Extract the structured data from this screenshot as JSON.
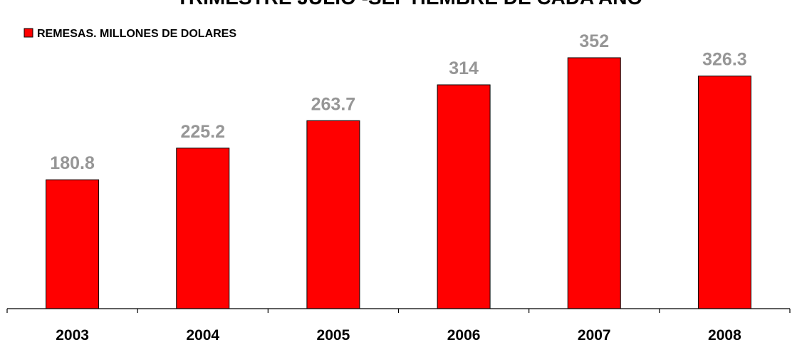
{
  "chart_data": {
    "type": "bar",
    "title": "TRIMESTRE JULIO -SEPTIEMBRE DE CADA AÑO",
    "xlabel": "",
    "ylabel": "",
    "categories": [
      "2003",
      "2004",
      "2005",
      "2006",
      "2007",
      "2008"
    ],
    "series": [
      {
        "name": "REMESAS. MILLONES DE DOLARES",
        "values": [
          180.8,
          225.2,
          263.7,
          314,
          352,
          326.3
        ],
        "value_labels": [
          "180.8",
          "225.2",
          "263.7",
          "314",
          "352",
          "326.3"
        ],
        "color": "#ff0000"
      }
    ],
    "ylim": [
      0,
      400
    ],
    "grid": false,
    "legend_position": "top-left",
    "data_label_color": "#969696"
  }
}
